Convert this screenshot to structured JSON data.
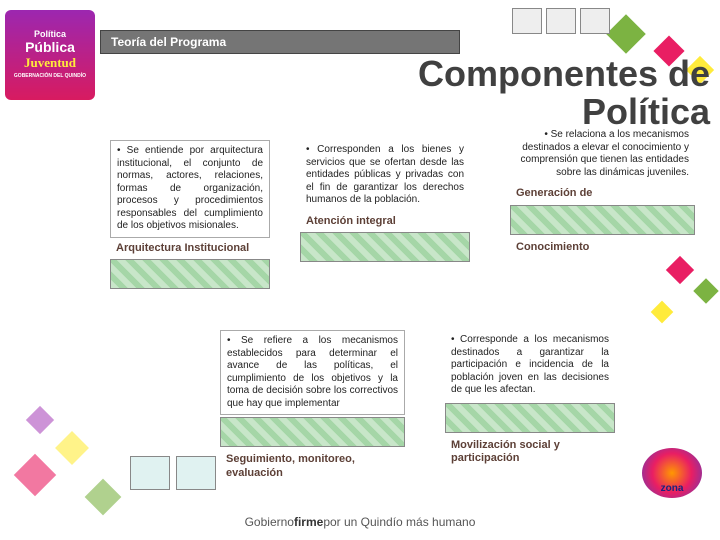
{
  "header": {
    "section_title": "Teoría del Programa",
    "logo_line1": "Política",
    "logo_line2": "Pública",
    "logo_line3": "Juventud",
    "logo_sub": "GOBERNACIÓN DEL QUINDÍO"
  },
  "big_title": "Componentes de Política",
  "cards": {
    "arquitectura": {
      "text": "• Se entiende por arquitectura institucional, el conjunto de normas, actores, relaciones, formas de organización, procesos y procedimientos responsables del cumplimiento de los objetivos misionales.",
      "label": "Arquitectura Institucional"
    },
    "atencion": {
      "text": "• Corresponden a los bienes y servicios que se ofertan desde las entidades públicas y privadas con el fin de garantizar los derechos humanos de la población.",
      "label": "Atención integral"
    },
    "generacion": {
      "text": "• Se relaciona a los mecanismos destinados a elevar el conocimiento y comprensión que tienen las entidades sobre las dinámicas juveniles.",
      "label1": "Generación de",
      "label2": "Conocimiento"
    },
    "seguimiento": {
      "text": "• Se refiere a los mecanismos establecidos para determinar el avance de las políticas, el cumplimiento de los objetivos y la toma de decisión sobre los correctivos que hay que implementar",
      "label": "Seguimiento, monitoreo, evaluación"
    },
    "movilizacion": {
      "text": "• Corresponde a los mecanismos destinados a garantizar la participación e incidencia de la población joven en las decisiones de que les afectan.",
      "label": "Movilización social y participación"
    }
  },
  "footer": {
    "prefix": "Gobierno ",
    "strong": "firme",
    "suffix": " por un Quindío más humano"
  },
  "zona_label": "zona",
  "colors": {
    "titlebar_bg": "#757575",
    "accent_purple": "#9c27b0",
    "accent_pink": "#e91e63",
    "accent_green": "#7cb342",
    "accent_yellow": "#ffeb3b",
    "label_color": "#5d4037"
  }
}
